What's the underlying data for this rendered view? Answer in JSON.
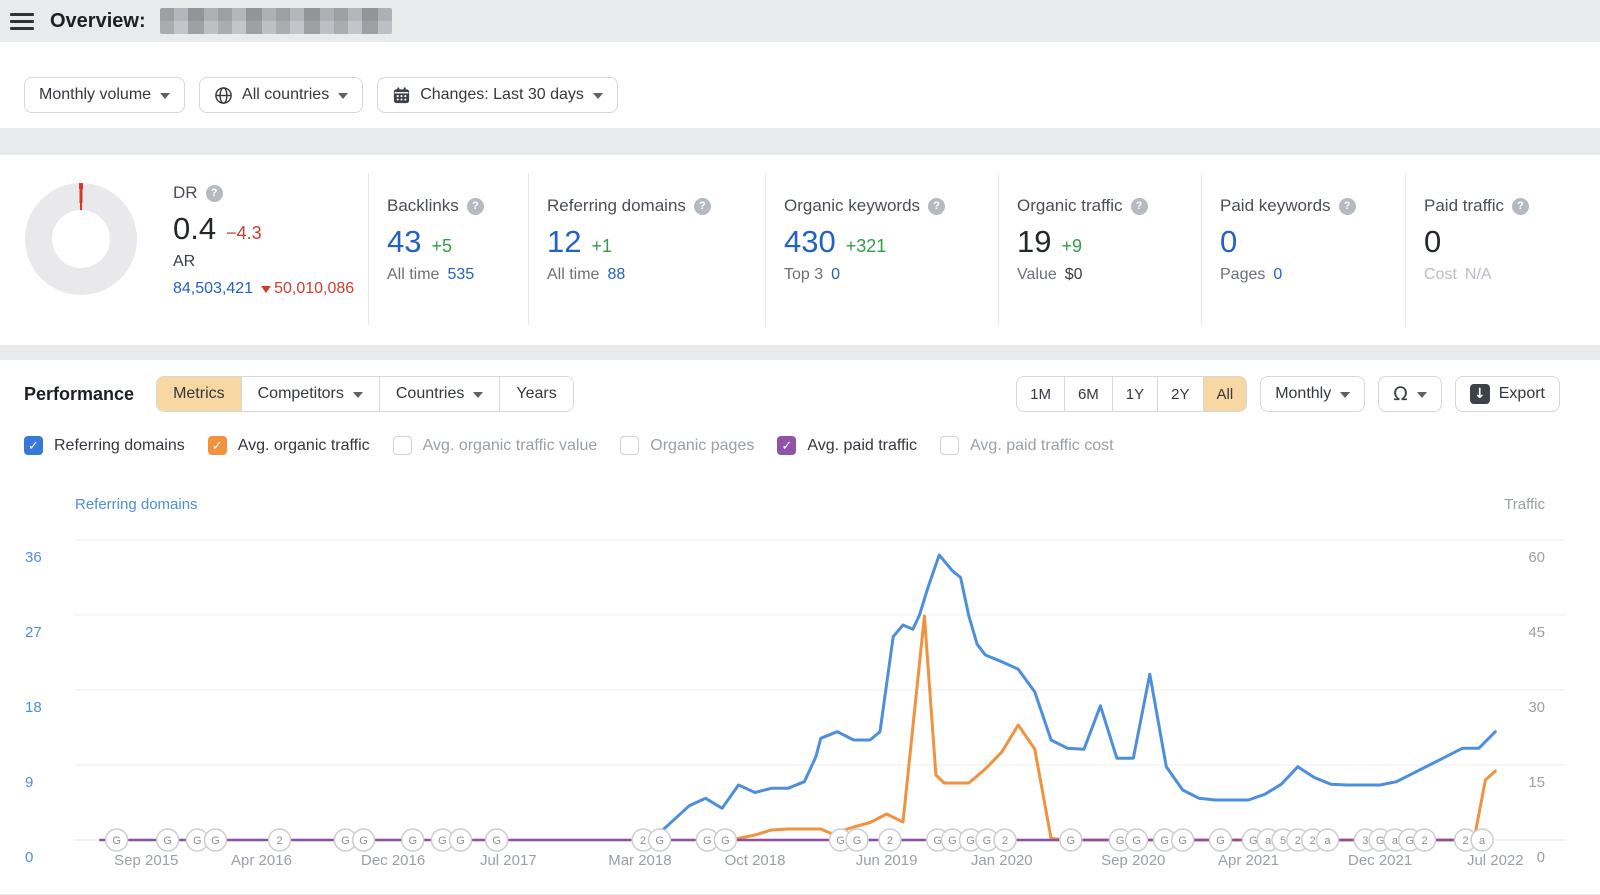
{
  "header": {
    "title": "Overview:",
    "domain_redacted": true
  },
  "filters": [
    {
      "name": "volume-mode",
      "label": "Monthly volume",
      "caret": true
    },
    {
      "name": "countries",
      "label": "All countries",
      "icon": "globe",
      "caret": true
    },
    {
      "name": "changes-period",
      "label": "Changes: Last 30 days",
      "icon": "calendar",
      "caret": true
    }
  ],
  "metrics": {
    "dr": {
      "label": "DR",
      "value": "0.4",
      "delta": "−4.3",
      "sub_label": "AR",
      "sub_value": "84,503,421",
      "sub_delta": "50,010,086"
    },
    "cards": [
      {
        "name": "backlinks",
        "label": "Backlinks",
        "value": "43",
        "value_class": "blue",
        "delta": "+5",
        "sub_label": "All time",
        "sub_value": "535",
        "sub_value_class": "link"
      },
      {
        "name": "referring-domains",
        "label": "Referring domains",
        "value": "12",
        "value_class": "blue",
        "delta": "+1",
        "sub_label": "All time",
        "sub_value": "88",
        "sub_value_class": "link"
      },
      {
        "name": "organic-keywords",
        "label": "Organic keywords",
        "value": "430",
        "value_class": "blue",
        "delta": "+321",
        "sub_label": "Top 3",
        "sub_value": "0",
        "sub_value_class": "link"
      },
      {
        "name": "organic-traffic",
        "label": "Organic traffic",
        "value": "19",
        "value_class": "dark",
        "delta": "+9",
        "sub_label": "Value",
        "sub_value": "$0",
        "sub_value_class": "dark"
      },
      {
        "name": "paid-keywords",
        "label": "Paid keywords",
        "value": "0",
        "value_class": "blue",
        "delta": "",
        "sub_label": "Pages",
        "sub_value": "0",
        "sub_value_class": "link"
      },
      {
        "name": "paid-traffic",
        "label": "Paid traffic",
        "value": "0",
        "value_class": "dark",
        "delta": "",
        "sub_label": "Cost",
        "sub_value": "N/A",
        "sub_value_class": "muted",
        "muted_sub_label": true
      }
    ]
  },
  "performance": {
    "title": "Performance",
    "tabs": [
      {
        "label": "Metrics",
        "active": true
      },
      {
        "label": "Competitors",
        "caret": true
      },
      {
        "label": "Countries",
        "caret": true
      },
      {
        "label": "Years"
      }
    ],
    "ranges": [
      "1M",
      "6M",
      "1Y",
      "2Y",
      "All"
    ],
    "active_range": "All",
    "interval": "Monthly",
    "export_label": "Export"
  },
  "legend": [
    {
      "label": "Referring domains",
      "checked": true,
      "color": "#3779d9"
    },
    {
      "label": "Avg. organic traffic",
      "checked": true,
      "color": "#f0923e"
    },
    {
      "label": "Avg. organic traffic value",
      "checked": false
    },
    {
      "label": "Organic pages",
      "checked": false
    },
    {
      "label": "Avg. paid traffic",
      "checked": true,
      "color": "#9153a8"
    },
    {
      "label": "Avg. paid traffic cost",
      "checked": false
    }
  ],
  "chart_data": {
    "type": "line",
    "x_unit": "months since Jun 2015",
    "x_tick_labels": [
      [
        3,
        "Sep 2015"
      ],
      [
        10,
        "Apr 2016"
      ],
      [
        18,
        "Dec 2016"
      ],
      [
        25,
        "Jul 2017"
      ],
      [
        33,
        "Mar 2018"
      ],
      [
        40,
        "Oct 2018"
      ],
      [
        48,
        "Jun 2019"
      ],
      [
        55,
        "Jan 2020"
      ],
      [
        63,
        "Sep 2020"
      ],
      [
        70,
        "Apr 2021"
      ],
      [
        78,
        "Dec 2021"
      ],
      [
        85,
        "Jul 2022"
      ]
    ],
    "left_axis": {
      "title": "Referring domains",
      "ticks": [
        36,
        27,
        18,
        9,
        0
      ],
      "range": [
        0,
        40
      ],
      "color": "#4d8fdb"
    },
    "right_axis": {
      "title": "Traffic",
      "ticks": [
        60,
        45,
        30,
        15,
        0
      ],
      "range": [
        0,
        66
      ],
      "color": "#9aa0a6"
    },
    "grid": true,
    "legend_position": "above-chart-checkboxes",
    "series": [
      {
        "name": "Referring domains",
        "axis": "left",
        "color": "#4d8fdb",
        "points": [
          [
            33.2,
            0.2
          ],
          [
            34,
            0.5
          ],
          [
            35,
            2.3
          ],
          [
            36,
            4.1
          ],
          [
            37,
            5
          ],
          [
            38,
            3.8
          ],
          [
            39,
            6.6
          ],
          [
            40,
            5.7
          ],
          [
            41,
            6.2
          ],
          [
            42,
            6.2
          ],
          [
            43,
            7
          ],
          [
            43.7,
            10
          ],
          [
            44,
            12.2
          ],
          [
            45,
            13
          ],
          [
            46,
            12
          ],
          [
            47,
            12
          ],
          [
            47.6,
            13
          ],
          [
            48.4,
            24.4
          ],
          [
            49,
            25.8
          ],
          [
            49.6,
            25.3
          ],
          [
            50,
            27
          ],
          [
            50.5,
            30.2
          ],
          [
            51.2,
            34.2
          ],
          [
            52,
            32.3
          ],
          [
            52.5,
            31.5
          ],
          [
            53,
            26.9
          ],
          [
            53.5,
            23.5
          ],
          [
            54,
            22.2
          ],
          [
            55,
            21.4
          ],
          [
            56,
            20.5
          ],
          [
            57,
            17.8
          ],
          [
            58,
            12
          ],
          [
            59,
            11
          ],
          [
            60,
            10.9
          ],
          [
            61,
            16.1
          ],
          [
            62,
            9.8
          ],
          [
            63,
            9.8
          ],
          [
            64,
            19.9
          ],
          [
            65,
            8.8
          ],
          [
            66,
            6
          ],
          [
            67,
            5
          ],
          [
            68,
            4.8
          ],
          [
            69,
            4.8
          ],
          [
            70,
            4.8
          ],
          [
            71,
            5.5
          ],
          [
            72,
            6.7
          ],
          [
            73,
            8.8
          ],
          [
            74,
            7.5
          ],
          [
            75,
            6.7
          ],
          [
            76,
            6.6
          ],
          [
            77,
            6.6
          ],
          [
            78,
            6.6
          ],
          [
            79,
            7
          ],
          [
            80,
            8
          ],
          [
            81,
            9
          ],
          [
            82,
            10
          ],
          [
            83,
            11
          ],
          [
            84,
            11
          ],
          [
            85,
            13
          ]
        ]
      },
      {
        "name": "Avg. organic traffic",
        "axis": "right",
        "color": "#f0923e",
        "points": [
          [
            38.8,
            0.2
          ],
          [
            40,
            1
          ],
          [
            41,
            2
          ],
          [
            42,
            2.2
          ],
          [
            43,
            2.2
          ],
          [
            44,
            2.2
          ],
          [
            44.7,
            1.2
          ],
          [
            46,
            2.6
          ],
          [
            47,
            3.5
          ],
          [
            48,
            5.2
          ],
          [
            49,
            3.6
          ],
          [
            50.3,
            44.8
          ],
          [
            51,
            13
          ],
          [
            51.5,
            11.4
          ],
          [
            53,
            11.4
          ],
          [
            54,
            14.2
          ],
          [
            55,
            17.6
          ],
          [
            56,
            23
          ],
          [
            57,
            18.2
          ],
          [
            58,
            0.3
          ],
          [
            59,
            0
          ],
          [
            83.3,
            0
          ],
          [
            83.8,
            1.6
          ],
          [
            84.4,
            12
          ],
          [
            85,
            13.8
          ]
        ]
      },
      {
        "name": "Avg. paid traffic",
        "axis": "right",
        "color": "#8a4fa5",
        "points": [
          [
            0.2,
            0
          ],
          [
            84.2,
            0
          ]
        ]
      }
    ],
    "timeline_events": [
      [
        1.2,
        "G"
      ],
      [
        4.3,
        "G"
      ],
      [
        6.1,
        "G"
      ],
      [
        7.2,
        "G"
      ],
      [
        11.1,
        "2"
      ],
      [
        15.1,
        "G"
      ],
      [
        16.2,
        "G"
      ],
      [
        19.2,
        "G"
      ],
      [
        21,
        "G"
      ],
      [
        22.1,
        "G"
      ],
      [
        24.3,
        "G"
      ],
      [
        33.2,
        "2"
      ],
      [
        34.2,
        "G"
      ],
      [
        37.1,
        "G"
      ],
      [
        38.2,
        "G"
      ],
      [
        45.2,
        "G"
      ],
      [
        46.2,
        "G"
      ],
      [
        48.2,
        "2"
      ],
      [
        51.1,
        "G"
      ],
      [
        52,
        "G"
      ],
      [
        53.1,
        "G"
      ],
      [
        54.1,
        "G"
      ],
      [
        55.2,
        "2"
      ],
      [
        59.2,
        "G"
      ],
      [
        62.2,
        "G"
      ],
      [
        63.2,
        "G"
      ],
      [
        64.9,
        "G"
      ],
      [
        66,
        "G"
      ],
      [
        68.3,
        "G"
      ],
      [
        70.3,
        "G"
      ],
      [
        71.2,
        "a"
      ],
      [
        72.1,
        "5"
      ],
      [
        73,
        "2"
      ],
      [
        73.9,
        "2"
      ],
      [
        74.8,
        "a"
      ],
      [
        77.1,
        "3"
      ],
      [
        78,
        "G"
      ],
      [
        78.9,
        "a"
      ],
      [
        79.8,
        "G"
      ],
      [
        80.7,
        "2"
      ],
      [
        83.2,
        "2"
      ],
      [
        84.2,
        "a"
      ]
    ]
  }
}
